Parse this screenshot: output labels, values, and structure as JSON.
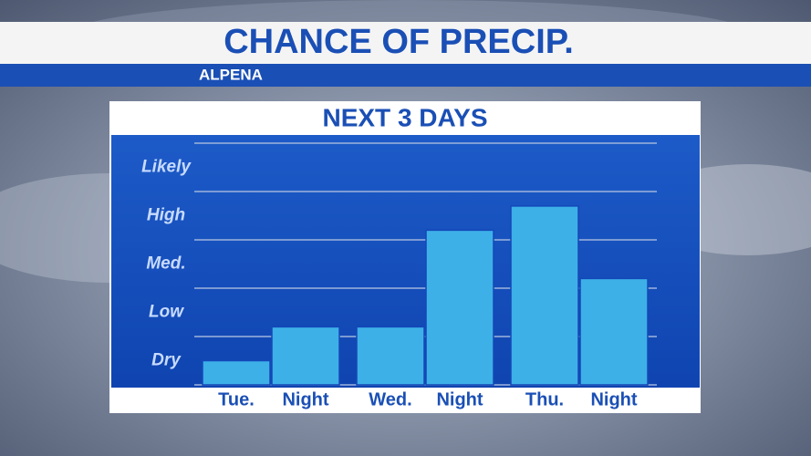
{
  "chart_data": {
    "type": "bar",
    "title": "CHANCE OF PRECIP.",
    "subtitle": "ALPENA",
    "panel_title": "NEXT 3 DAYS",
    "categories": [
      "Tue.",
      "Night",
      "Wed.",
      "Night",
      "Thu.",
      "Night"
    ],
    "values": [
      0.5,
      1.2,
      1.2,
      3.2,
      3.7,
      2.2
    ],
    "color": "#3db0e8",
    "ylim": [
      0,
      5
    ],
    "yticks": [
      {
        "value": 0.5,
        "label": "Dry"
      },
      {
        "value": 1.5,
        "label": "Low"
      },
      {
        "value": 2.5,
        "label": "Med."
      },
      {
        "value": 3.5,
        "label": "High"
      },
      {
        "value": 4.5,
        "label": "Likely"
      }
    ],
    "ygrid": [
      0,
      1,
      2,
      3,
      4,
      5
    ],
    "grid": true
  }
}
